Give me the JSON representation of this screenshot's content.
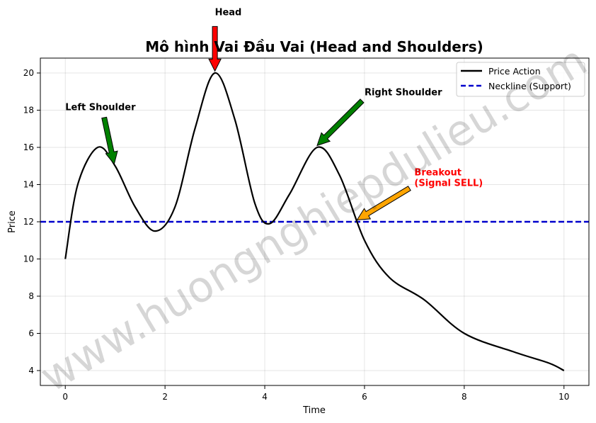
{
  "chart_data": {
    "type": "line",
    "title": "Mô hình Vai Đầu Vai (Head and Shoulders)",
    "xlabel": "Time",
    "ylabel": "Price",
    "xlim": [
      -0.5,
      10.5
    ],
    "ylim": [
      3.2,
      20.8
    ],
    "xticks": [
      0,
      2,
      4,
      6,
      8,
      10
    ],
    "yticks": [
      4,
      6,
      8,
      10,
      12,
      14,
      16,
      18,
      20
    ],
    "grid": true,
    "legend_position": "top-right",
    "series": [
      {
        "name": "Price Action",
        "color": "#000000",
        "style": "solid",
        "x": [
          0,
          0.25,
          0.65,
          1.0,
          1.4,
          1.8,
          2.2,
          2.6,
          3.0,
          3.4,
          3.8,
          4.1,
          4.5,
          5.05,
          5.5,
          6.0,
          6.5,
          7.2,
          8.0,
          9.0,
          9.7,
          10.0
        ],
        "y": [
          10,
          14.0,
          16.0,
          15.0,
          12.8,
          11.5,
          12.8,
          17.0,
          20.0,
          17.5,
          13.0,
          11.9,
          13.5,
          16.0,
          14.5,
          11.0,
          9.0,
          7.8,
          6.0,
          5.0,
          4.4,
          4.0
        ]
      },
      {
        "name": "Neckline (Support)",
        "color": "#0000cc",
        "style": "dashed",
        "y_constant": 12
      }
    ],
    "annotations": [
      {
        "id": "head",
        "text": "Head",
        "text_x": 3.0,
        "text_y": 23.1,
        "arrow_from": [
          3.0,
          22.5
        ],
        "arrow_to": [
          3.0,
          20.1
        ],
        "color": "#ff0000",
        "text_color": "#000000"
      },
      {
        "id": "left-shoulder",
        "text": "Left Shoulder",
        "text_x": 0.0,
        "text_y": 18.0,
        "arrow_from": [
          0.78,
          17.6
        ],
        "arrow_to": [
          0.98,
          15.1
        ],
        "color": "#008000",
        "text_color": "#000000"
      },
      {
        "id": "right-shoulder",
        "text": "Right Shoulder",
        "text_x": 6.0,
        "text_y": 18.8,
        "arrow_from": [
          5.95,
          18.5
        ],
        "arrow_to": [
          5.05,
          16.1
        ],
        "color": "#008000",
        "text_color": "#000000"
      },
      {
        "id": "breakout",
        "text": "Breakout\n(Signal SELL)",
        "text_x": 7.0,
        "text_y": 14.5,
        "arrow_from": [
          6.9,
          13.8
        ],
        "arrow_to": [
          5.85,
          12.1
        ],
        "color": "#ffa500",
        "text_color": "#ff0000"
      }
    ]
  },
  "watermark": "www.huongnghiepdulieu.com"
}
